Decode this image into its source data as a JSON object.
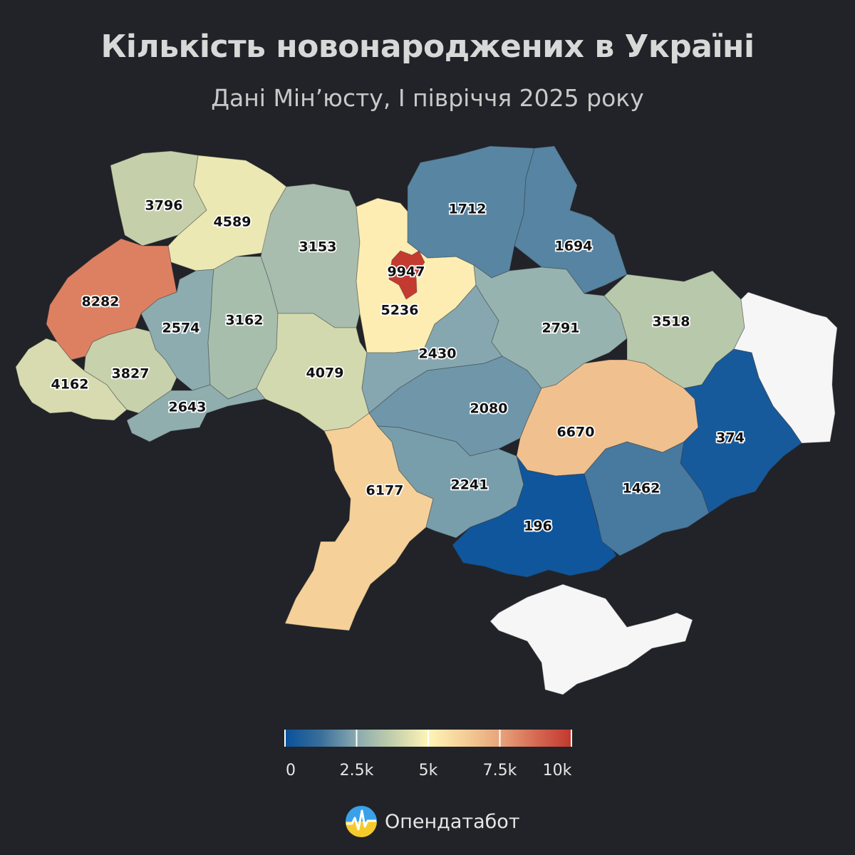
{
  "header": {
    "title": "Кількість новонароджених в Україні",
    "subtitle": "Дані Мін’юсту, І півріччя 2025 року"
  },
  "map": {
    "regions": [
      {
        "id": "volyn",
        "value": 3796
      },
      {
        "id": "rivne",
        "value": 4589
      },
      {
        "id": "zhytomyr",
        "value": 3153
      },
      {
        "id": "kyiv-oblast",
        "value": 5236
      },
      {
        "id": "kyiv-city",
        "value": 9947
      },
      {
        "id": "chernihiv",
        "value": 1712
      },
      {
        "id": "sumy",
        "value": 1694
      },
      {
        "id": "lviv",
        "value": 8282
      },
      {
        "id": "ternopil",
        "value": 2574
      },
      {
        "id": "khmelnytskyi",
        "value": 3162
      },
      {
        "id": "vinnytsia",
        "value": 4079
      },
      {
        "id": "cherkasy",
        "value": 2430
      },
      {
        "id": "poltava",
        "value": 2791
      },
      {
        "id": "kharkiv",
        "value": 3518
      },
      {
        "id": "zakarpattia",
        "value": 4162
      },
      {
        "id": "ivano-frankivsk",
        "value": 3827
      },
      {
        "id": "chernivtsi",
        "value": 2643
      },
      {
        "id": "kirovohrad",
        "value": 2080
      },
      {
        "id": "dnipropetrovsk",
        "value": 6670
      },
      {
        "id": "donetsk",
        "value": 374
      },
      {
        "id": "odesa",
        "value": 6177
      },
      {
        "id": "mykolaiv",
        "value": 2241
      },
      {
        "id": "kherson",
        "value": 196
      },
      {
        "id": "zaporizhzhia",
        "value": 1462
      },
      {
        "id": "luhansk",
        "value": null
      },
      {
        "id": "crimea",
        "value": null
      }
    ],
    "no_data_color": "#f6f6f6"
  },
  "legend": {
    "min": 0,
    "max": 10000,
    "tick_labels": [
      "0",
      "2.5k",
      "5k",
      "7.5k",
      "10k"
    ],
    "tick_values": [
      0,
      2500,
      5000,
      7500,
      10000
    ],
    "colors": [
      "#08519c",
      "#3a6f9a",
      "#8aaab0",
      "#c3cfaa",
      "#fff4b8",
      "#f4cf97",
      "#e8a47b",
      "#d66a53",
      "#c2382e"
    ]
  },
  "brand": {
    "name": "Опендатабот",
    "logo_icon": "opendatabot-logo-icon"
  }
}
